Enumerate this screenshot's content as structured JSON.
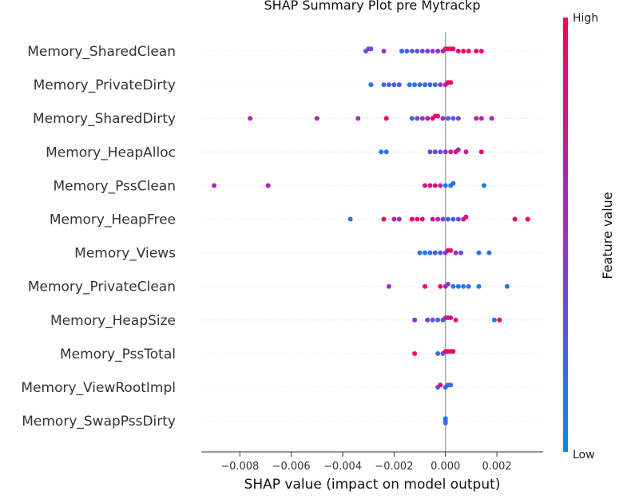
{
  "chart_data": {
    "type": "scatter",
    "title": "SHAP Summary Plot pre Mytrackp",
    "xlabel": "SHAP value (impact on model output)",
    "xlim": [
      -0.0095,
      0.0038
    ],
    "x_ticks": [
      -0.008,
      -0.006,
      -0.004,
      -0.002,
      0.0,
      0.002
    ],
    "x_tick_labels": [
      "−0.008",
      "−0.006",
      "−0.004",
      "−0.002",
      "0.000",
      "0.002"
    ],
    "colorbar": {
      "label": "Feature value",
      "high_label": "High",
      "low_label": "Low",
      "high_color": "#ff0052",
      "mid_color": "#9a2ed0",
      "low_color": "#008bfb"
    },
    "grid": false,
    "features": [
      {
        "name": "Memory_SharedClean",
        "points": [
          [
            -0.0031,
            0.3
          ],
          [
            -0.003,
            0.35
          ],
          [
            -0.0029,
            0.4
          ],
          [
            -0.0024,
            0.5
          ],
          [
            -0.0017,
            0.2
          ],
          [
            -0.0015,
            0.15
          ],
          [
            -0.0013,
            0.25
          ],
          [
            -0.0011,
            0.3
          ],
          [
            -0.0009,
            0.35
          ],
          [
            -0.0007,
            0.45
          ],
          [
            -0.0005,
            0.5
          ],
          [
            -0.0003,
            0.55
          ],
          [
            -0.0001,
            0.6
          ],
          [
            0.0,
            0.75
          ],
          [
            0.0001,
            0.9
          ],
          [
            0.0002,
            0.95
          ],
          [
            0.0003,
            0.85
          ],
          [
            0.0005,
            0.8
          ],
          [
            0.0007,
            0.9
          ],
          [
            0.0009,
            0.95
          ],
          [
            0.0012,
            1.0
          ],
          [
            0.0014,
            0.9
          ]
        ]
      },
      {
        "name": "Memory_PrivateDirty",
        "points": [
          [
            -0.0029,
            0.1
          ],
          [
            -0.0024,
            0.2
          ],
          [
            -0.0022,
            0.2
          ],
          [
            -0.002,
            0.25
          ],
          [
            -0.0018,
            0.2
          ],
          [
            -0.0014,
            0.15
          ],
          [
            -0.0012,
            0.1
          ],
          [
            -0.001,
            0.15
          ],
          [
            -0.0008,
            0.2
          ],
          [
            -0.0006,
            0.15
          ],
          [
            -0.0004,
            0.2
          ],
          [
            -0.0002,
            0.4
          ],
          [
            0.0,
            0.7
          ],
          [
            0.0001,
            0.9
          ],
          [
            0.0002,
            0.95
          ]
        ]
      },
      {
        "name": "Memory_SharedDirty",
        "points": [
          [
            -0.0076,
            0.6
          ],
          [
            -0.005,
            0.6
          ],
          [
            -0.0034,
            0.6
          ],
          [
            -0.0023,
            0.95
          ],
          [
            -0.0013,
            0.2
          ],
          [
            -0.0011,
            0.3
          ],
          [
            -0.0009,
            0.5
          ],
          [
            -0.0007,
            0.7
          ],
          [
            -0.0005,
            0.9
          ],
          [
            -0.0004,
            0.95
          ],
          [
            -0.0003,
            0.85
          ],
          [
            -0.0001,
            0.5
          ],
          [
            0.0001,
            0.3
          ],
          [
            0.0003,
            0.25
          ],
          [
            0.0005,
            0.4
          ],
          [
            0.0012,
            0.65
          ],
          [
            0.0014,
            0.6
          ],
          [
            0.0018,
            0.6
          ]
        ]
      },
      {
        "name": "Memory_HeapAlloc",
        "points": [
          [
            -0.0025,
            0.1
          ],
          [
            -0.0023,
            0.15
          ],
          [
            -0.0006,
            0.35
          ],
          [
            -0.0004,
            0.4
          ],
          [
            -0.0002,
            0.3
          ],
          [
            0.0,
            0.5
          ],
          [
            0.0002,
            0.7
          ],
          [
            0.0004,
            0.85
          ],
          [
            0.0005,
            0.65
          ],
          [
            0.0008,
            0.7
          ],
          [
            0.0014,
            0.9
          ]
        ]
      },
      {
        "name": "Memory_PssClean",
        "points": [
          [
            -0.009,
            0.6
          ],
          [
            -0.0069,
            0.6
          ],
          [
            -0.0008,
            0.75
          ],
          [
            -0.0006,
            0.85
          ],
          [
            -0.0004,
            0.95
          ],
          [
            -0.0002,
            0.6
          ],
          [
            0.0,
            0.1
          ],
          [
            0.0002,
            0.1
          ],
          [
            0.0003,
            0.15
          ],
          [
            0.0015,
            0.1
          ]
        ]
      },
      {
        "name": "Memory_HeapFree",
        "points": [
          [
            -0.0037,
            0.15
          ],
          [
            -0.0024,
            0.95
          ],
          [
            -0.002,
            0.6
          ],
          [
            -0.0018,
            0.5
          ],
          [
            -0.0013,
            0.95
          ],
          [
            -0.0011,
            0.9
          ],
          [
            -0.0009,
            0.85
          ],
          [
            -0.0005,
            0.8
          ],
          [
            -0.0003,
            0.6
          ],
          [
            -0.0001,
            0.4
          ],
          [
            0.0001,
            0.25
          ],
          [
            0.0003,
            0.2
          ],
          [
            0.0005,
            0.35
          ],
          [
            0.0007,
            0.75
          ],
          [
            0.0008,
            0.8
          ],
          [
            0.0027,
            0.95
          ],
          [
            0.0032,
            0.95
          ]
        ]
      },
      {
        "name": "Memory_Views",
        "points": [
          [
            -0.001,
            0.15
          ],
          [
            -0.0008,
            0.1
          ],
          [
            -0.0006,
            0.15
          ],
          [
            -0.0004,
            0.2
          ],
          [
            -0.0002,
            0.25
          ],
          [
            0.0,
            0.45
          ],
          [
            0.0001,
            0.8
          ],
          [
            0.0002,
            0.9
          ],
          [
            0.0004,
            0.5
          ],
          [
            0.0006,
            0.3
          ],
          [
            0.0013,
            0.1
          ],
          [
            0.0017,
            0.15
          ]
        ]
      },
      {
        "name": "Memory_PrivateClean",
        "points": [
          [
            -0.0022,
            0.55
          ],
          [
            -0.0008,
            0.85
          ],
          [
            -0.0002,
            0.9
          ],
          [
            0.0,
            0.5
          ],
          [
            0.0001,
            0.4
          ],
          [
            0.0003,
            0.2
          ],
          [
            0.0005,
            0.15
          ],
          [
            0.0007,
            0.1
          ],
          [
            0.0009,
            0.15
          ],
          [
            0.0013,
            0.1
          ],
          [
            0.0024,
            0.1
          ]
        ]
      },
      {
        "name": "Memory_HeapSize",
        "points": [
          [
            -0.0012,
            0.5
          ],
          [
            -0.0007,
            0.4
          ],
          [
            -0.0005,
            0.3
          ],
          [
            -0.0003,
            0.2
          ],
          [
            -0.0001,
            0.3
          ],
          [
            0.0,
            0.6
          ],
          [
            0.0001,
            0.8
          ],
          [
            0.0002,
            0.75
          ],
          [
            0.0004,
            0.85
          ],
          [
            0.0019,
            0.1
          ],
          [
            0.0021,
            0.9
          ]
        ]
      },
      {
        "name": "Memory_PssTotal",
        "points": [
          [
            -0.0012,
            0.95
          ],
          [
            -0.0003,
            0.2
          ],
          [
            -0.0001,
            0.3
          ],
          [
            0.0,
            0.85
          ],
          [
            0.0001,
            0.9
          ],
          [
            0.0002,
            0.95
          ],
          [
            0.0003,
            0.8
          ]
        ]
      },
      {
        "name": "Memory_ViewRootImpl",
        "points": [
          [
            -0.0003,
            0.3
          ],
          [
            -0.0002,
            0.9
          ],
          [
            0.0,
            0.2
          ],
          [
            0.0001,
            0.15
          ],
          [
            0.0002,
            0.2
          ]
        ]
      },
      {
        "name": "Memory_SwapPssDirty",
        "points": [
          [
            0.0,
            0.1
          ],
          [
            0.0,
            0.15
          ],
          [
            0.0,
            0.2
          ]
        ]
      }
    ]
  }
}
